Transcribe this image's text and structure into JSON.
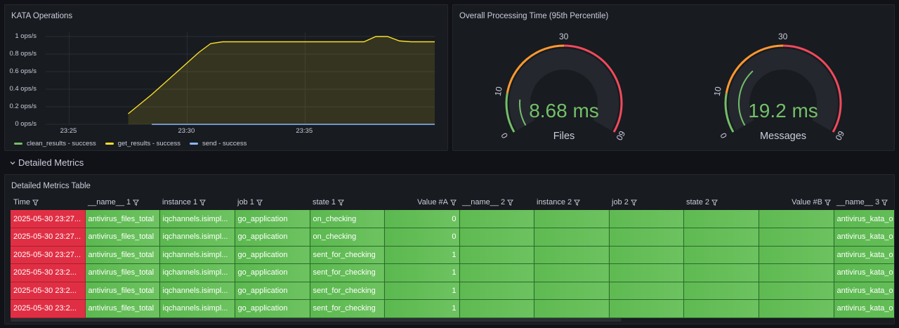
{
  "panels": {
    "kata": {
      "title": "KATA Operations",
      "chart_data": {
        "type": "line",
        "yticks": [
          "1 ops/s",
          "0.8 ops/s",
          "0.6 ops/s",
          "0.4 ops/s",
          "0.2 ops/s",
          "0 ops/s"
        ],
        "xticks": [
          "23:25",
          "23:30",
          "23:35"
        ],
        "ylim": [
          0,
          1
        ],
        "series": [
          {
            "name": "clean_results - success",
            "color": "#73bf69",
            "x": [],
            "values": []
          },
          {
            "name": "get_results - success",
            "color": "#fade2a",
            "x": [
              "23:27:30",
              "23:28:00",
              "23:28:30",
              "23:29:00",
              "23:29:30",
              "23:30:00",
              "23:30:30",
              "23:31:00",
              "23:31:30",
              "23:32:00",
              "23:32:30",
              "23:33:00",
              "23:33:30",
              "23:34:00",
              "23:34:30",
              "23:35:00",
              "23:35:30",
              "23:36:00",
              "23:36:30",
              "23:37:00",
              "23:37:30",
              "23:38:00",
              "23:38:30",
              "23:39:00",
              "23:39:30",
              "23:40:00",
              "23:40:30"
            ],
            "values": [
              0.12,
              0.23,
              0.34,
              0.46,
              0.58,
              0.7,
              0.82,
              0.92,
              0.94,
              0.94,
              0.94,
              0.94,
              0.94,
              0.94,
              0.94,
              0.94,
              0.94,
              0.94,
              0.94,
              0.94,
              0.94,
              1.0,
              1.0,
              0.95,
              0.94,
              0.94,
              0.94
            ]
          },
          {
            "name": "send - success",
            "color": "#8ab8ff",
            "x": [
              "23:28:30",
              "23:30:00",
              "23:32:00",
              "23:34:00",
              "23:36:00",
              "23:38:00",
              "23:40:30"
            ],
            "values": [
              0.0,
              0.0,
              0.0,
              0.0,
              0.0,
              0.0,
              0.0
            ]
          }
        ]
      }
    },
    "processing": {
      "title": "Overall Processing Time (95th Percentile)",
      "gauges": [
        {
          "value": "8.68 ms",
          "label": "Files",
          "ticks": [
            "0",
            "10",
            "30",
            "60"
          ]
        },
        {
          "value": "19.2 ms",
          "label": "Messages",
          "ticks": [
            "0",
            "10",
            "30",
            "60"
          ]
        }
      ],
      "colors": {
        "green": "#73bf69",
        "orange": "#ff9830",
        "red": "#f2495c",
        "value": "#73bf69"
      }
    },
    "row": {
      "label": "Detailed Metrics",
      "icon": "chevron-down-icon"
    },
    "table": {
      "title": "Detailed Metrics Table",
      "columns": [
        "Time",
        "__name__ 1",
        "instance 1",
        "job 1",
        "state 1",
        "Value #A",
        "__name__ 2",
        "instance 2",
        "job 2",
        "state 2",
        "Value #B",
        "__name__ 3"
      ],
      "rows": [
        [
          "2025-05-30 23:27...",
          "antivirus_files_total",
          "iqchannels.isimpl...",
          "go_application",
          "on_checking",
          "0",
          "",
          "",
          "",
          "",
          "",
          "antivirus_kata_o"
        ],
        [
          "2025-05-30 23:27...",
          "antivirus_files_total",
          "iqchannels.isimpl...",
          "go_application",
          "on_checking",
          "0",
          "",
          "",
          "",
          "",
          "",
          "antivirus_kata_o"
        ],
        [
          "2025-05-30 23:27...",
          "antivirus_files_total",
          "iqchannels.isimpl...",
          "go_application",
          "sent_for_checking",
          "1",
          "",
          "",
          "",
          "",
          "",
          "antivirus_kata_o"
        ],
        [
          "2025-05-30 23:2...",
          "antivirus_files_total",
          "iqchannels.isimpl...",
          "go_application",
          "sent_for_checking",
          "1",
          "",
          "",
          "",
          "",
          "",
          "antivirus_kata_o"
        ],
        [
          "2025-05-30 23:2...",
          "antivirus_files_total",
          "iqchannels.isimpl...",
          "go_application",
          "sent_for_checking",
          "1",
          "",
          "",
          "",
          "",
          "",
          "antivirus_kata_o"
        ],
        [
          "2025-05-30 23:2...",
          "antivirus_files_total",
          "iqchannels.isimpl...",
          "go_application",
          "sent_for_checking",
          "1",
          "",
          "",
          "",
          "",
          "",
          "antivirus_kata_o"
        ]
      ]
    }
  }
}
